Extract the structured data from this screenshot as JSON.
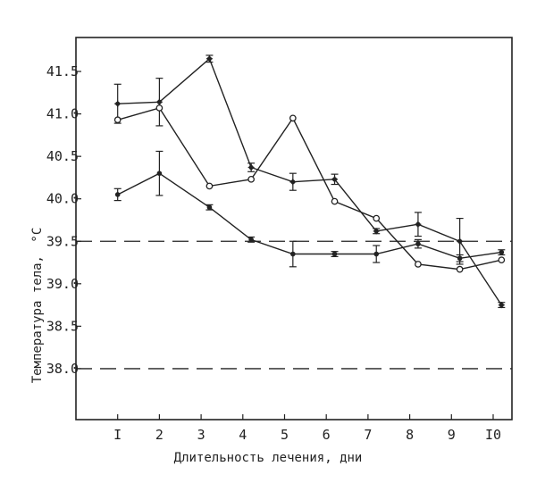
{
  "chart_data": {
    "type": "line",
    "xlabel": "Длительность лечения, дни",
    "ylabel": "Температура тела, °C",
    "ylabel_main": "Температура тела,",
    "ylabel_unit": "°C",
    "x_ticks": [
      {
        "value": 1,
        "label": "I"
      },
      {
        "value": 2,
        "label": "2"
      },
      {
        "value": 3,
        "label": "3"
      },
      {
        "value": 4,
        "label": "4"
      },
      {
        "value": 5,
        "label": "5"
      },
      {
        "value": 6,
        "label": "6"
      },
      {
        "value": 7,
        "label": "7"
      },
      {
        "value": 8,
        "label": "8"
      },
      {
        "value": 9,
        "label": "9"
      },
      {
        "value": 10,
        "label": "I0"
      }
    ],
    "y_ticks": [
      {
        "value": 38.0,
        "label": "38.0"
      },
      {
        "value": 38.5,
        "label": "38.5"
      },
      {
        "value": 39.0,
        "label": "39.0"
      },
      {
        "value": 39.5,
        "label": "39.5"
      },
      {
        "value": 40.0,
        "label": "40.0"
      },
      {
        "value": 40.5,
        "label": "40.5"
      },
      {
        "value": 41.0,
        "label": "41.0"
      },
      {
        "value": 41.5,
        "label": "41.5"
      }
    ],
    "xlim": [
      0.0,
      10.45
    ],
    "ylim": [
      37.4,
      41.9
    ],
    "grid": false,
    "reference_lines": [
      {
        "y": 39.5,
        "style": "dashed"
      },
      {
        "y": 38.0,
        "style": "dashed"
      }
    ],
    "series": [
      {
        "marker": "star",
        "x": [
          1,
          2,
          3.2,
          4.2,
          5.2,
          6.2,
          7.2,
          8.2,
          9.2,
          10.2
        ],
        "y": [
          41.12,
          41.14,
          41.65,
          40.37,
          40.2,
          40.23,
          39.62,
          39.7,
          39.5,
          38.75
        ],
        "err": [
          0.23,
          0.28,
          0.04,
          0.05,
          0.1,
          0.06,
          0.03,
          0.14,
          0.27,
          0.03
        ]
      },
      {
        "marker": "open-circle",
        "x": [
          1,
          2,
          3.2,
          4.2,
          5.2,
          6.2,
          7.2,
          8.2,
          9.2,
          10.2
        ],
        "y": [
          40.93,
          41.07,
          40.15,
          40.23,
          40.95,
          39.97,
          39.77,
          39.23,
          39.17,
          39.28
        ],
        "err": [
          0,
          0,
          0,
          0,
          0,
          0,
          0,
          0,
          0,
          0
        ]
      },
      {
        "marker": "filled-dot",
        "x": [
          1,
          2,
          3.2,
          4.2,
          5.2,
          6.2,
          7.2,
          8.2,
          9.2,
          10.2
        ],
        "y": [
          40.05,
          40.3,
          39.9,
          39.52,
          39.35,
          39.35,
          39.35,
          39.47,
          39.3,
          39.37
        ],
        "err": [
          0.07,
          0.26,
          0.03,
          0.03,
          0.15,
          0.03,
          0.1,
          0.05,
          0.04,
          0.03
        ]
      }
    ]
  }
}
